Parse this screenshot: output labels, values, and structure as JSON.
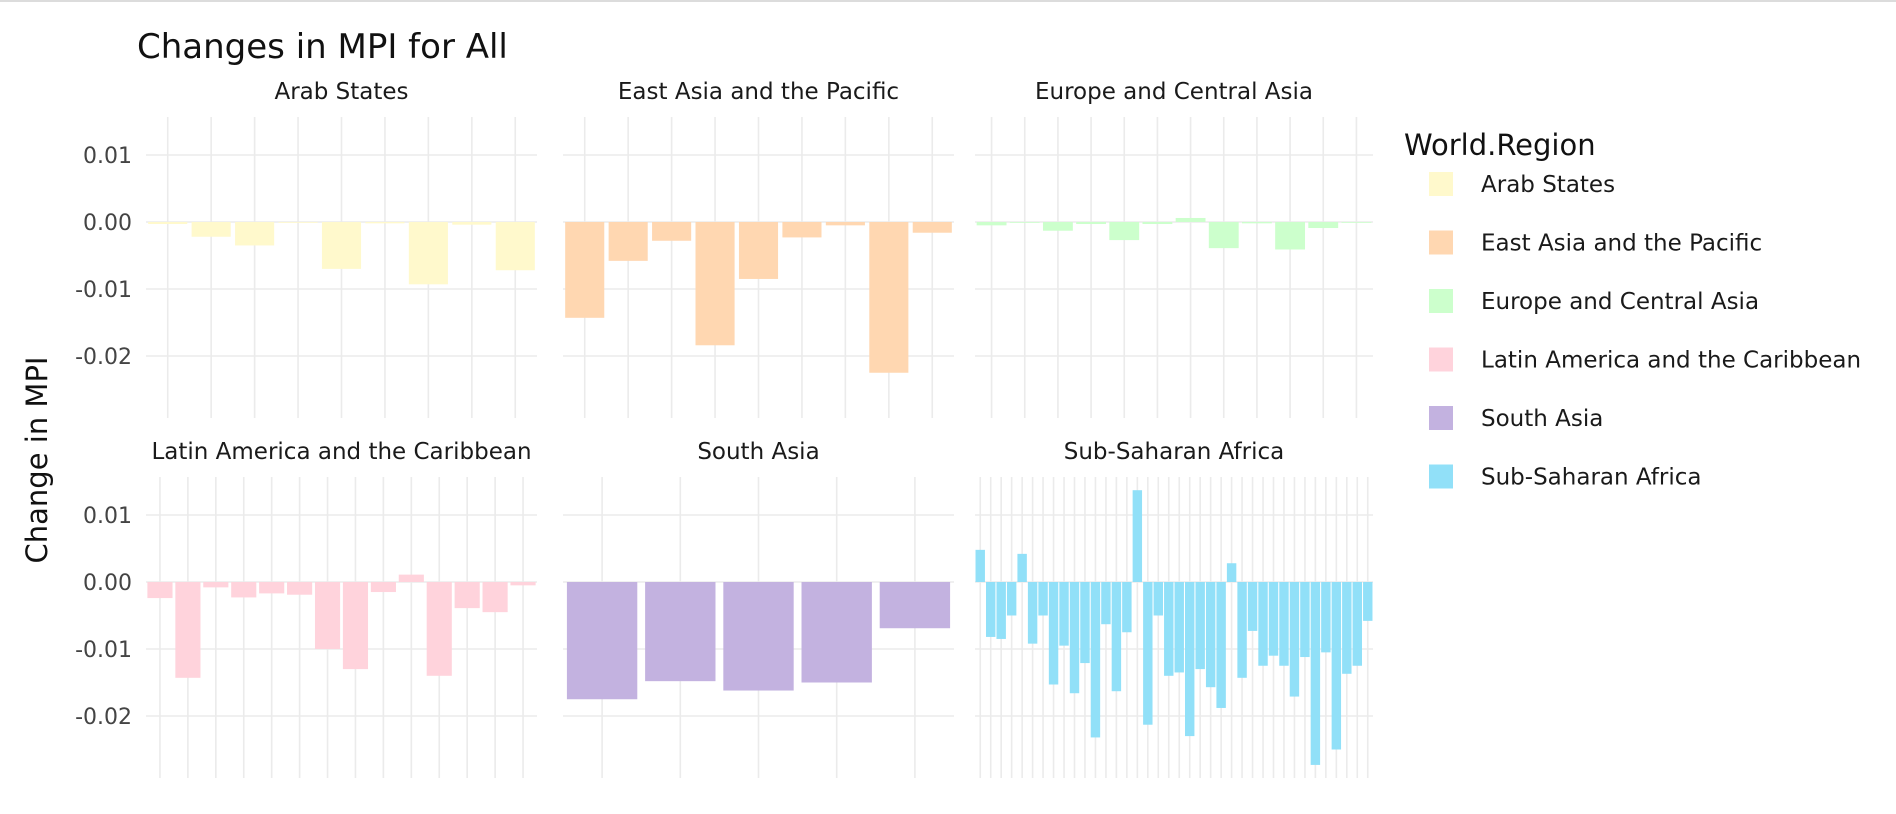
{
  "chart_data": {
    "type": "bar",
    "title": "Changes in MPI for All",
    "ylabel": "Change in MPI",
    "xlabel": "",
    "ylim": [
      -0.029,
      0.016
    ],
    "y_ticks": [
      0.01,
      0.0,
      -0.01,
      -0.02
    ],
    "y_tick_labels": [
      "0.01",
      "0.00",
      "-0.01",
      "-0.02"
    ],
    "grid": true,
    "legend": {
      "title": "World.Region",
      "position": "right",
      "entries": [
        {
          "label": "Arab States",
          "color": "#FFF9CC"
        },
        {
          "label": "East Asia and the Pacific",
          "color": "#FFD7B1"
        },
        {
          "label": "Europe and Central Asia",
          "color": "#CCFFCC"
        },
        {
          "label": "Latin America and the Caribbean",
          "color": "#FFD3DC"
        },
        {
          "label": "South Asia",
          "color": "#C3B2E0"
        },
        {
          "label": "Sub-Saharan Africa",
          "color": "#91E0F8"
        }
      ]
    },
    "facets": [
      {
        "name": "Arab States",
        "color": "#FFF9CC",
        "values": [
          -0.0003,
          -0.0022,
          -0.0035,
          0,
          -0.007,
          -0.0002,
          -0.0093,
          -0.0004,
          -0.0072
        ]
      },
      {
        "name": "East Asia and the Pacific",
        "color": "#FFD7B1",
        "values": [
          -0.0143,
          -0.0058,
          -0.0028,
          -0.0184,
          -0.0085,
          -0.0023,
          -0.0005,
          -0.0225,
          -0.0016
        ]
      },
      {
        "name": "Europe and Central Asia",
        "color": "#CCFFCC",
        "values": [
          -0.0005,
          0,
          -0.0013,
          -0.0003,
          -0.0027,
          -0.0003,
          0.0006,
          -0.0039,
          -0.0002,
          -0.0041,
          -0.0009,
          -0.0001
        ]
      },
      {
        "name": "Latin America and the Caribbean",
        "color": "#FFD3DC",
        "values": [
          -0.0024,
          -0.0143,
          -0.0008,
          -0.0023,
          -0.0017,
          -0.0019,
          -0.01,
          -0.013,
          -0.0015,
          0.0011,
          -0.014,
          -0.0039,
          -0.0045,
          -0.0005
        ]
      },
      {
        "name": "South Asia",
        "color": "#C3B2E0",
        "values": [
          -0.0175,
          -0.0148,
          -0.0162,
          -0.015,
          -0.0069
        ]
      },
      {
        "name": "Sub-Saharan Africa",
        "color": "#91E0F8",
        "values": [
          0.0048,
          -0.0082,
          -0.0085,
          -0.005,
          0.0042,
          -0.0092,
          -0.005,
          -0.0153,
          -0.0095,
          -0.0166,
          -0.0121,
          -0.0232,
          -0.0063,
          -0.0163,
          -0.0075,
          0.0137,
          -0.0213,
          -0.005,
          -0.014,
          -0.0135,
          -0.023,
          -0.013,
          -0.0157,
          -0.0188,
          0.0028,
          -0.0143,
          -0.0073,
          -0.0125,
          -0.011,
          -0.0125,
          -0.0171,
          -0.0112,
          -0.0273,
          -0.0105,
          -0.025,
          -0.0137,
          -0.0125,
          -0.0058
        ]
      }
    ]
  }
}
